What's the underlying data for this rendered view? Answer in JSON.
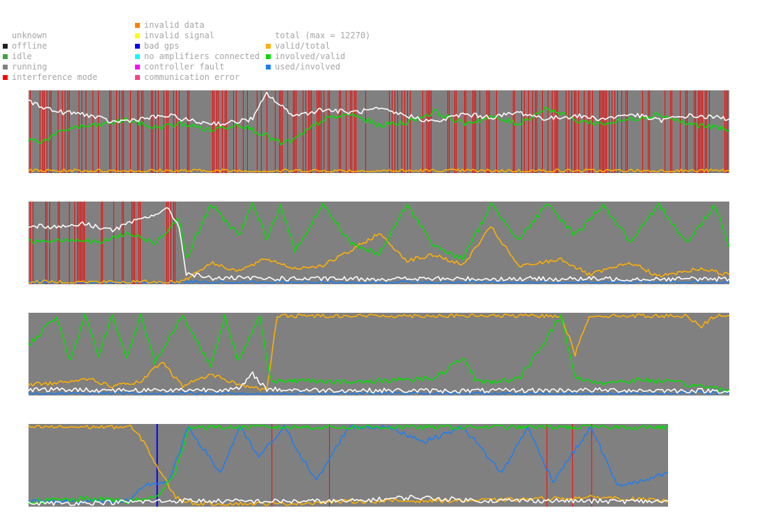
{
  "legend": {
    "col1": [
      {
        "key": "unknown",
        "label": "unknown",
        "color": null
      },
      {
        "key": "offline",
        "label": "offline",
        "color": "#202020"
      },
      {
        "key": "idle",
        "label": "idle",
        "color": "#3fa23f"
      },
      {
        "key": "running",
        "label": "running",
        "color": "#808080"
      },
      {
        "key": "interference",
        "label": "interference mode",
        "color": "#ff0000"
      }
    ],
    "col2": [
      {
        "key": "invalid_data",
        "label": "invalid data",
        "color": "#ff7f00"
      },
      {
        "key": "invalid_signal",
        "label": "invalid signal",
        "color": "#ffff00"
      },
      {
        "key": "bad_gps",
        "label": "bad gps",
        "color": "#0000ff"
      },
      {
        "key": "no_amp",
        "label": "no amplifiers connected",
        "color": "#00ffff"
      },
      {
        "key": "controller_fault",
        "label": "controller fault",
        "color": "#ff00ff"
      },
      {
        "key": "comm_error",
        "label": "communication error",
        "color": "#ff3f7f"
      }
    ],
    "col3": [
      {
        "key": "total",
        "label": "total (max = 12270)",
        "color": null
      },
      {
        "key": "valid_total",
        "label": "valid/total",
        "color": "#ffb000"
      },
      {
        "key": "involved_valid",
        "label": "involved/valid",
        "color": "#00e000"
      },
      {
        "key": "used_involved",
        "label": "used/involved",
        "color": "#1e7ff0"
      }
    ]
  },
  "chart_data": {
    "type": "line",
    "series_colors": {
      "total": "#ffffff",
      "valid_total": "#ffb000",
      "involved_valid": "#00e000",
      "used_involved": "#1e7ff0",
      "running": "#808080",
      "interference": "#ff0000",
      "bad_gps": "#0000ff"
    },
    "ylim": [
      0,
      1
    ],
    "strips": [
      {
        "x_range": [
          0,
          1000
        ],
        "interference_fraction": 0.55,
        "total": [
          [
            0,
            0.88
          ],
          [
            40,
            0.75
          ],
          [
            80,
            0.72
          ],
          [
            120,
            0.62
          ],
          [
            160,
            0.66
          ],
          [
            200,
            0.7
          ],
          [
            240,
            0.62
          ],
          [
            280,
            0.6
          ],
          [
            320,
            0.66
          ],
          [
            340,
            0.98
          ],
          [
            360,
            0.82
          ],
          [
            380,
            0.7
          ],
          [
            420,
            0.78
          ],
          [
            460,
            0.74
          ],
          [
            500,
            0.78
          ],
          [
            540,
            0.7
          ],
          [
            580,
            0.62
          ],
          [
            620,
            0.72
          ],
          [
            660,
            0.68
          ],
          [
            700,
            0.74
          ],
          [
            740,
            0.66
          ],
          [
            780,
            0.7
          ],
          [
            820,
            0.66
          ],
          [
            860,
            0.72
          ],
          [
            900,
            0.64
          ],
          [
            940,
            0.7
          ],
          [
            980,
            0.68
          ],
          [
            1000,
            0.66
          ]
        ],
        "valid_total": [
          [
            0,
            0.01
          ],
          [
            1000,
            0.01
          ]
        ],
        "involved_valid": [
          [
            0,
            0.4
          ],
          [
            20,
            0.38
          ],
          [
            60,
            0.55
          ],
          [
            100,
            0.58
          ],
          [
            140,
            0.65
          ],
          [
            180,
            0.55
          ],
          [
            220,
            0.6
          ],
          [
            260,
            0.52
          ],
          [
            300,
            0.6
          ],
          [
            340,
            0.45
          ],
          [
            360,
            0.35
          ],
          [
            380,
            0.4
          ],
          [
            420,
            0.65
          ],
          [
            460,
            0.72
          ],
          [
            500,
            0.58
          ],
          [
            540,
            0.62
          ],
          [
            580,
            0.75
          ],
          [
            620,
            0.6
          ],
          [
            660,
            0.68
          ],
          [
            700,
            0.6
          ],
          [
            740,
            0.8
          ],
          [
            780,
            0.64
          ],
          [
            820,
            0.6
          ],
          [
            860,
            0.66
          ],
          [
            900,
            0.72
          ],
          [
            940,
            0.6
          ],
          [
            980,
            0.55
          ],
          [
            1000,
            0.52
          ]
        ]
      },
      {
        "x_range": [
          0,
          1000
        ],
        "interference_until": 0.21,
        "total": [
          [
            0,
            0.72
          ],
          [
            40,
            0.7
          ],
          [
            80,
            0.74
          ],
          [
            120,
            0.66
          ],
          [
            160,
            0.8
          ],
          [
            200,
            0.92
          ],
          [
            215,
            0.7
          ],
          [
            225,
            0.12
          ],
          [
            260,
            0.06
          ],
          [
            400,
            0.05
          ],
          [
            600,
            0.05
          ],
          [
            800,
            0.05
          ],
          [
            1000,
            0.05
          ]
        ],
        "valid_total": [
          [
            0,
            0.01
          ],
          [
            215,
            0.01
          ],
          [
            225,
            0.05
          ],
          [
            260,
            0.25
          ],
          [
            300,
            0.15
          ],
          [
            340,
            0.3
          ],
          [
            380,
            0.18
          ],
          [
            420,
            0.22
          ],
          [
            460,
            0.4
          ],
          [
            500,
            0.62
          ],
          [
            540,
            0.28
          ],
          [
            580,
            0.35
          ],
          [
            620,
            0.22
          ],
          [
            660,
            0.7
          ],
          [
            700,
            0.2
          ],
          [
            760,
            0.3
          ],
          [
            800,
            0.1
          ],
          [
            860,
            0.25
          ],
          [
            900,
            0.08
          ],
          [
            960,
            0.18
          ],
          [
            1000,
            0.1
          ]
        ],
        "involved_valid": [
          [
            0,
            0.52
          ],
          [
            60,
            0.55
          ],
          [
            100,
            0.5
          ],
          [
            140,
            0.62
          ],
          [
            180,
            0.5
          ],
          [
            215,
            0.82
          ],
          [
            225,
            0.3
          ],
          [
            260,
            0.98
          ],
          [
            300,
            0.6
          ],
          [
            320,
            0.98
          ],
          [
            340,
            0.55
          ],
          [
            360,
            0.98
          ],
          [
            380,
            0.4
          ],
          [
            420,
            0.98
          ],
          [
            460,
            0.5
          ],
          [
            500,
            0.35
          ],
          [
            540,
            0.98
          ],
          [
            580,
            0.45
          ],
          [
            620,
            0.3
          ],
          [
            660,
            0.98
          ],
          [
            700,
            0.55
          ],
          [
            740,
            0.98
          ],
          [
            780,
            0.6
          ],
          [
            820,
            0.98
          ],
          [
            860,
            0.5
          ],
          [
            900,
            0.98
          ],
          [
            940,
            0.5
          ],
          [
            980,
            0.98
          ],
          [
            1000,
            0.45
          ]
        ],
        "used_involved": [
          [
            0,
            0.0
          ],
          [
            1000,
            0.0
          ]
        ]
      },
      {
        "x_range": [
          0,
          1000
        ],
        "total": [
          [
            0,
            0.06
          ],
          [
            100,
            0.05
          ],
          [
            200,
            0.05
          ],
          [
            300,
            0.06
          ],
          [
            320,
            0.25
          ],
          [
            340,
            0.06
          ],
          [
            400,
            0.05
          ],
          [
            600,
            0.04
          ],
          [
            800,
            0.05
          ],
          [
            1000,
            0.04
          ]
        ],
        "valid_total": [
          [
            0,
            0.12
          ],
          [
            40,
            0.14
          ],
          [
            80,
            0.2
          ],
          [
            120,
            0.1
          ],
          [
            160,
            0.15
          ],
          [
            190,
            0.4
          ],
          [
            220,
            0.1
          ],
          [
            260,
            0.25
          ],
          [
            300,
            0.12
          ],
          [
            340,
            0.05
          ],
          [
            355,
            0.98
          ],
          [
            500,
            0.98
          ],
          [
            700,
            0.98
          ],
          [
            760,
            0.98
          ],
          [
            780,
            0.5
          ],
          [
            800,
            0.98
          ],
          [
            940,
            0.98
          ],
          [
            960,
            0.85
          ],
          [
            980,
            0.98
          ],
          [
            1000,
            0.98
          ]
        ],
        "involved_valid": [
          [
            0,
            0.6
          ],
          [
            40,
            0.98
          ],
          [
            60,
            0.4
          ],
          [
            80,
            0.98
          ],
          [
            100,
            0.5
          ],
          [
            120,
            0.98
          ],
          [
            140,
            0.45
          ],
          [
            160,
            0.98
          ],
          [
            180,
            0.4
          ],
          [
            220,
            0.98
          ],
          [
            260,
            0.35
          ],
          [
            280,
            0.98
          ],
          [
            300,
            0.4
          ],
          [
            330,
            0.98
          ],
          [
            345,
            0.2
          ],
          [
            360,
            0.15
          ],
          [
            400,
            0.18
          ],
          [
            460,
            0.14
          ],
          [
            520,
            0.18
          ],
          [
            580,
            0.2
          ],
          [
            620,
            0.45
          ],
          [
            640,
            0.15
          ],
          [
            700,
            0.18
          ],
          [
            760,
            0.98
          ],
          [
            780,
            0.2
          ],
          [
            820,
            0.14
          ],
          [
            880,
            0.18
          ],
          [
            940,
            0.12
          ],
          [
            1000,
            0.05
          ]
        ],
        "used_involved": [
          [
            0,
            0.0
          ],
          [
            600,
            0.0
          ],
          [
            900,
            0.0
          ],
          [
            960,
            0.02
          ],
          [
            1000,
            0.02
          ]
        ]
      },
      {
        "x_range": [
          0,
          1000
        ],
        "bad_gps_at": 0.2,
        "interference_at": [
          0.38,
          0.47,
          0.81,
          0.85,
          0.88
        ],
        "total": [
          [
            0,
            0.02
          ],
          [
            150,
            0.04
          ],
          [
            250,
            0.06
          ],
          [
            300,
            0.05
          ],
          [
            500,
            0.05
          ],
          [
            600,
            0.1
          ],
          [
            700,
            0.06
          ],
          [
            800,
            0.06
          ],
          [
            900,
            0.05
          ],
          [
            1000,
            0.05
          ]
        ],
        "valid_total": [
          [
            0,
            0.98
          ],
          [
            160,
            0.98
          ],
          [
            180,
            0.8
          ],
          [
            200,
            0.5
          ],
          [
            230,
            0.1
          ],
          [
            260,
            0.02
          ],
          [
            400,
            0.02
          ],
          [
            500,
            0.05
          ],
          [
            700,
            0.06
          ],
          [
            800,
            0.08
          ],
          [
            900,
            0.1
          ],
          [
            1000,
            0.05
          ]
        ],
        "involved_valid": [
          [
            0,
            0.05
          ],
          [
            100,
            0.08
          ],
          [
            160,
            0.05
          ],
          [
            200,
            0.1
          ],
          [
            230,
            0.4
          ],
          [
            250,
            0.98
          ],
          [
            400,
            0.98
          ],
          [
            600,
            0.98
          ],
          [
            800,
            0.98
          ],
          [
            1000,
            0.98
          ]
        ],
        "used_involved": [
          [
            0,
            0.05
          ],
          [
            160,
            0.05
          ],
          [
            180,
            0.25
          ],
          [
            220,
            0.3
          ],
          [
            250,
            0.98
          ],
          [
            300,
            0.4
          ],
          [
            330,
            0.98
          ],
          [
            360,
            0.6
          ],
          [
            400,
            0.98
          ],
          [
            450,
            0.3
          ],
          [
            500,
            0.98
          ],
          [
            560,
            0.98
          ],
          [
            620,
            0.8
          ],
          [
            680,
            0.98
          ],
          [
            740,
            0.4
          ],
          [
            780,
            0.98
          ],
          [
            820,
            0.3
          ],
          [
            880,
            0.98
          ],
          [
            920,
            0.25
          ],
          [
            960,
            0.3
          ],
          [
            1000,
            0.4
          ]
        ]
      }
    ]
  }
}
